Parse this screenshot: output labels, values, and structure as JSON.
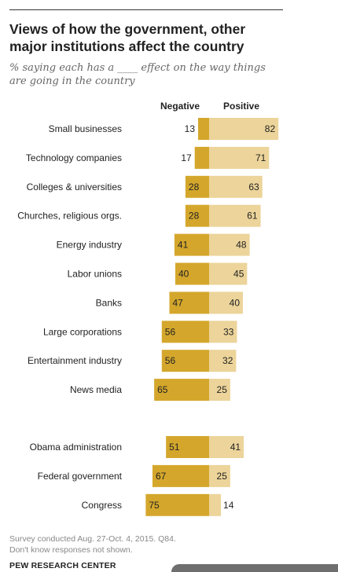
{
  "title": "Views of how the government, other major institutions affect the country",
  "subtitle": "% saying each has a ____ effect on the way things are going in the country",
  "notes": [
    "Survey conducted Aug. 27-Oct. 4, 2015. Q84.",
    "Don't know responses not shown."
  ],
  "source": "PEW RESEARCH CENTER",
  "colors": {
    "negative": "#d4a72c",
    "positive": "#ecd49a",
    "label": "#222222"
  },
  "chart_data": {
    "type": "bar",
    "orientation": "horizontal-diverging",
    "categories": [
      "Small businesses",
      "Technology companies",
      "Colleges & universities",
      "Churches, religious orgs.",
      "Energy industry",
      "Labor unions",
      "Banks",
      "Large corporations",
      "Entertainment industry",
      "News media",
      "Obama administration",
      "Federal government",
      "Congress"
    ],
    "series": [
      {
        "name": "Negative",
        "values": [
          13,
          17,
          28,
          28,
          41,
          40,
          47,
          56,
          56,
          65,
          51,
          67,
          75
        ]
      },
      {
        "name": "Positive",
        "values": [
          82,
          71,
          63,
          61,
          48,
          45,
          40,
          33,
          32,
          25,
          41,
          25,
          14
        ]
      }
    ],
    "groups": [
      {
        "start": 0,
        "end": 9
      },
      {
        "start": 10,
        "end": 12
      }
    ],
    "xlim": [
      0,
      100
    ],
    "grid": false,
    "legend": "top"
  }
}
